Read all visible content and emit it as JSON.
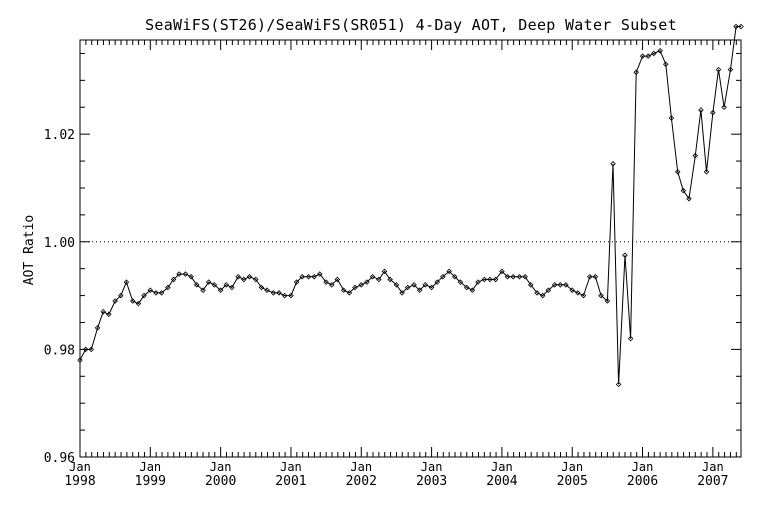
{
  "chart_data": {
    "type": "line",
    "title": "SeaWiFS(ST26)/SeaWiFS(SR051) 4-Day AOT, Deep Water Subset",
    "ylabel": "AOT Ratio",
    "xlabel": "",
    "ylim": [
      0.96,
      1.0375
    ],
    "xlim": [
      1998.0,
      2007.4
    ],
    "y_ticks": [
      {
        "value": 0.96,
        "label": "0.96"
      },
      {
        "value": 0.98,
        "label": "0.98"
      },
      {
        "value": 1.0,
        "label": "1.00"
      },
      {
        "value": 1.02,
        "label": "1.02"
      }
    ],
    "x_ticks": [
      {
        "value": 1998,
        "month": "Jan",
        "year": "1998"
      },
      {
        "value": 1999,
        "month": "Jan",
        "year": "1999"
      },
      {
        "value": 2000,
        "month": "Jan",
        "year": "2000"
      },
      {
        "value": 2001,
        "month": "Jan",
        "year": "2001"
      },
      {
        "value": 2002,
        "month": "Jan",
        "year": "2002"
      },
      {
        "value": 2003,
        "month": "Jan",
        "year": "2003"
      },
      {
        "value": 2004,
        "month": "Jan",
        "year": "2004"
      },
      {
        "value": 2005,
        "month": "Jan",
        "year": "2005"
      },
      {
        "value": 2006,
        "month": "Jan",
        "year": "2006"
      },
      {
        "value": 2007,
        "month": "Jan",
        "year": "2007"
      }
    ],
    "reference_line": {
      "y": 1.0,
      "style": "dotted"
    },
    "grid": false,
    "marker": "diamond",
    "series": [
      {
        "color": "#000000",
        "x": [
          1998.0,
          1998.08,
          1998.16,
          1998.25,
          1998.33,
          1998.41,
          1998.5,
          1998.58,
          1998.66,
          1998.75,
          1998.83,
          1998.91,
          1999.0,
          1999.08,
          1999.16,
          1999.25,
          1999.33,
          1999.41,
          1999.5,
          1999.58,
          1999.66,
          1999.75,
          1999.83,
          1999.91,
          2000.0,
          2000.08,
          2000.16,
          2000.25,
          2000.33,
          2000.41,
          2000.5,
          2000.58,
          2000.66,
          2000.75,
          2000.83,
          2000.91,
          2001.0,
          2001.08,
          2001.16,
          2001.25,
          2001.33,
          2001.41,
          2001.5,
          2001.58,
          2001.66,
          2001.75,
          2001.83,
          2001.91,
          2002.0,
          2002.08,
          2002.16,
          2002.25,
          2002.33,
          2002.41,
          2002.5,
          2002.58,
          2002.66,
          2002.75,
          2002.83,
          2002.91,
          2003.0,
          2003.08,
          2003.16,
          2003.25,
          2003.33,
          2003.41,
          2003.5,
          2003.58,
          2003.66,
          2003.75,
          2003.83,
          2003.91,
          2004.0,
          2004.08,
          2004.16,
          2004.25,
          2004.33,
          2004.41,
          2004.5,
          2004.58,
          2004.66,
          2004.75,
          2004.83,
          2004.91,
          2005.0,
          2005.08,
          2005.16,
          2005.25,
          2005.33,
          2005.41,
          2005.5,
          2005.58,
          2005.66,
          2005.75,
          2005.83,
          2005.91,
          2006.0,
          2006.08,
          2006.16,
          2006.25,
          2006.33,
          2006.41,
          2006.5,
          2006.58,
          2006.66,
          2006.75,
          2006.83,
          2006.91,
          2007.0,
          2007.08,
          2007.16,
          2007.25,
          2007.33,
          2007.4
        ],
        "y": [
          0.978,
          0.98,
          0.98,
          0.984,
          0.987,
          0.9865,
          0.989,
          0.99,
          0.9925,
          0.989,
          0.9885,
          0.99,
          0.991,
          0.9905,
          0.9905,
          0.9915,
          0.993,
          0.994,
          0.994,
          0.9935,
          0.992,
          0.991,
          0.9925,
          0.992,
          0.991,
          0.992,
          0.9915,
          0.9935,
          0.993,
          0.9935,
          0.993,
          0.9915,
          0.991,
          0.9905,
          0.9905,
          0.99,
          0.99,
          0.9925,
          0.9935,
          0.9935,
          0.9935,
          0.994,
          0.9925,
          0.992,
          0.993,
          0.991,
          0.9905,
          0.9915,
          0.992,
          0.9925,
          0.9935,
          0.993,
          0.9945,
          0.993,
          0.992,
          0.9905,
          0.9915,
          0.992,
          0.991,
          0.992,
          0.9915,
          0.9925,
          0.9935,
          0.9945,
          0.9935,
          0.9925,
          0.9915,
          0.991,
          0.9925,
          0.993,
          0.993,
          0.993,
          0.9945,
          0.9935,
          0.9935,
          0.9935,
          0.9935,
          0.992,
          0.9905,
          0.99,
          0.991,
          0.992,
          0.992,
          0.992,
          0.991,
          0.9905,
          0.99,
          0.9935,
          0.9935,
          0.99,
          0.989,
          1.0145,
          0.9735,
          0.9975,
          0.982,
          1.0315,
          1.0345,
          1.0345,
          1.035,
          1.0355,
          1.033,
          1.023,
          1.013,
          1.0095,
          1.008,
          1.016,
          1.0245,
          1.013,
          1.024,
          1.032,
          1.025,
          1.032,
          1.04,
          1.04
        ]
      }
    ]
  }
}
